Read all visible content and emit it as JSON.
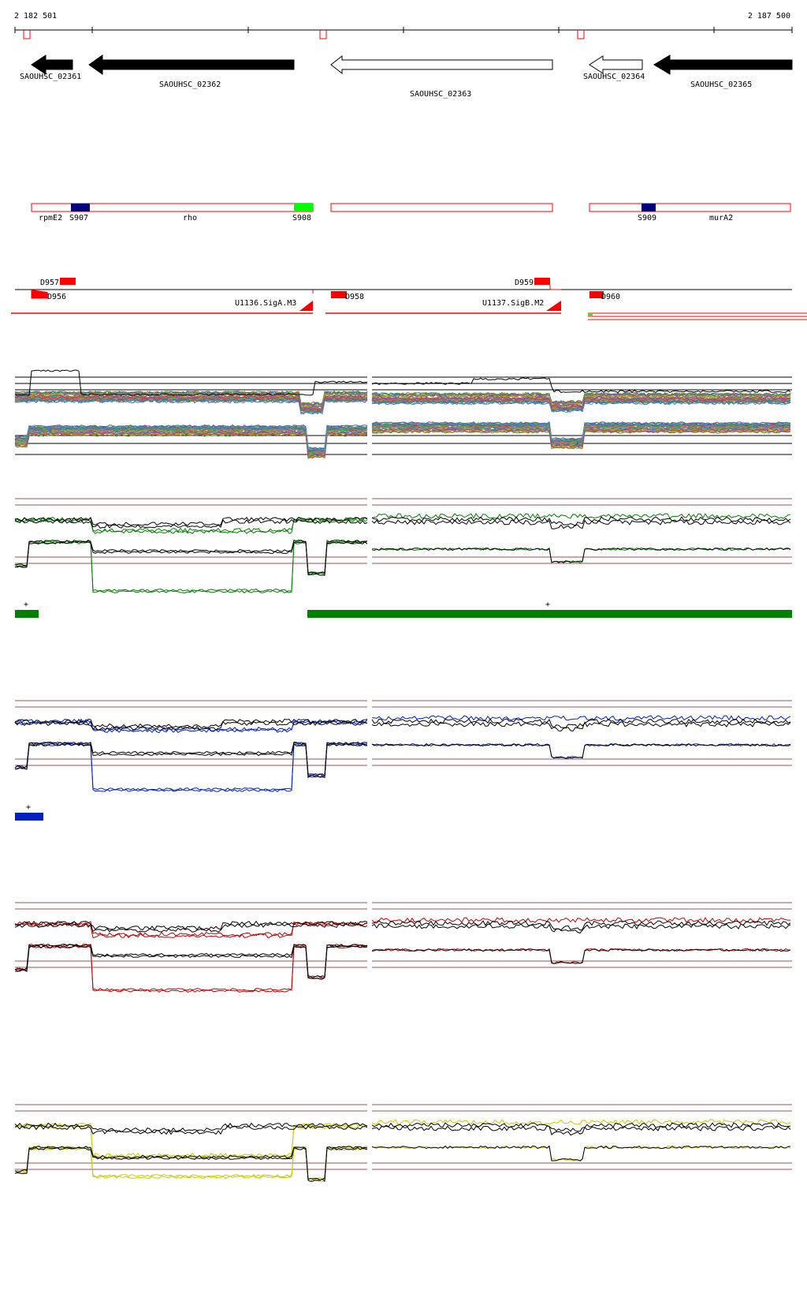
{
  "coords": {
    "start": "2 182 501",
    "end": "2 187 500"
  },
  "colors": {
    "annotation": "#ff0000",
    "green": "#008000",
    "blue": "#0020c0",
    "red": "#c00000",
    "yellow": "#c8c800",
    "guide": "#a05050",
    "dark_blue": "#000080",
    "bright_green": "#00ff00"
  },
  "genes": [
    {
      "label": "SAOUHSC_02361",
      "strand": "-",
      "filled": true
    },
    {
      "label": "SAOUHSC_02362",
      "strand": "-",
      "filled": true
    },
    {
      "label": "SAOUHSC_02363",
      "strand": "-",
      "filled": false
    },
    {
      "label": "SAOUHSC_02364",
      "strand": "-",
      "filled": false
    },
    {
      "label": "SAOUHSC_02365",
      "strand": "-",
      "filled": true
    }
  ],
  "operon_labels": {
    "rpmE2": "rpmE2",
    "S907": "S907",
    "rho": "rho",
    "S908": "S908",
    "S909": "S909",
    "murA2": "murA2"
  },
  "feature_labels": {
    "D957": "D957",
    "D956": "D956",
    "U1136": "U1136.SigA.M3",
    "D958": "D958",
    "D959": "D959",
    "U1137": "U1137.SigB.M2",
    "D960": "D960"
  },
  "track_markers": {
    "green_1": "+",
    "green_2": "+",
    "blue_1": "+"
  }
}
